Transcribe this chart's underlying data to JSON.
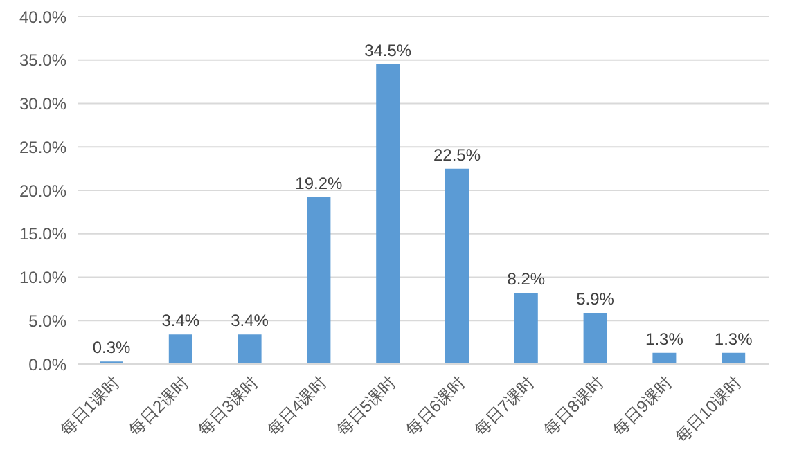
{
  "chart_data": {
    "type": "bar",
    "categories": [
      "每日1课时",
      "每日2课时",
      "每日3课时",
      "每日4课时",
      "每日5课时",
      "每日6课时",
      "每日7课时",
      "每日8课时",
      "每日9课时",
      "每日10课时"
    ],
    "values": [
      0.3,
      3.4,
      3.4,
      19.2,
      34.5,
      22.5,
      8.2,
      5.9,
      1.3,
      1.3
    ],
    "value_labels": [
      "0.3%",
      "3.4%",
      "3.4%",
      "19.2%",
      "34.5%",
      "22.5%",
      "8.2%",
      "5.9%",
      "1.3%",
      "1.3%"
    ],
    "color": "#5b9bd5",
    "ylim": [
      0,
      40
    ],
    "yticks": [
      {
        "value": 0,
        "label": "0.0%"
      },
      {
        "value": 5,
        "label": "5.0%"
      },
      {
        "value": 10,
        "label": "10.0%"
      },
      {
        "value": 15,
        "label": "15.0%"
      },
      {
        "value": 20,
        "label": "20.0%"
      },
      {
        "value": 25,
        "label": "25.0%"
      },
      {
        "value": 30,
        "label": "30.0%"
      },
      {
        "value": 35,
        "label": "35.0%"
      },
      {
        "value": 40,
        "label": "40.0%"
      }
    ],
    "grid": "y"
  }
}
